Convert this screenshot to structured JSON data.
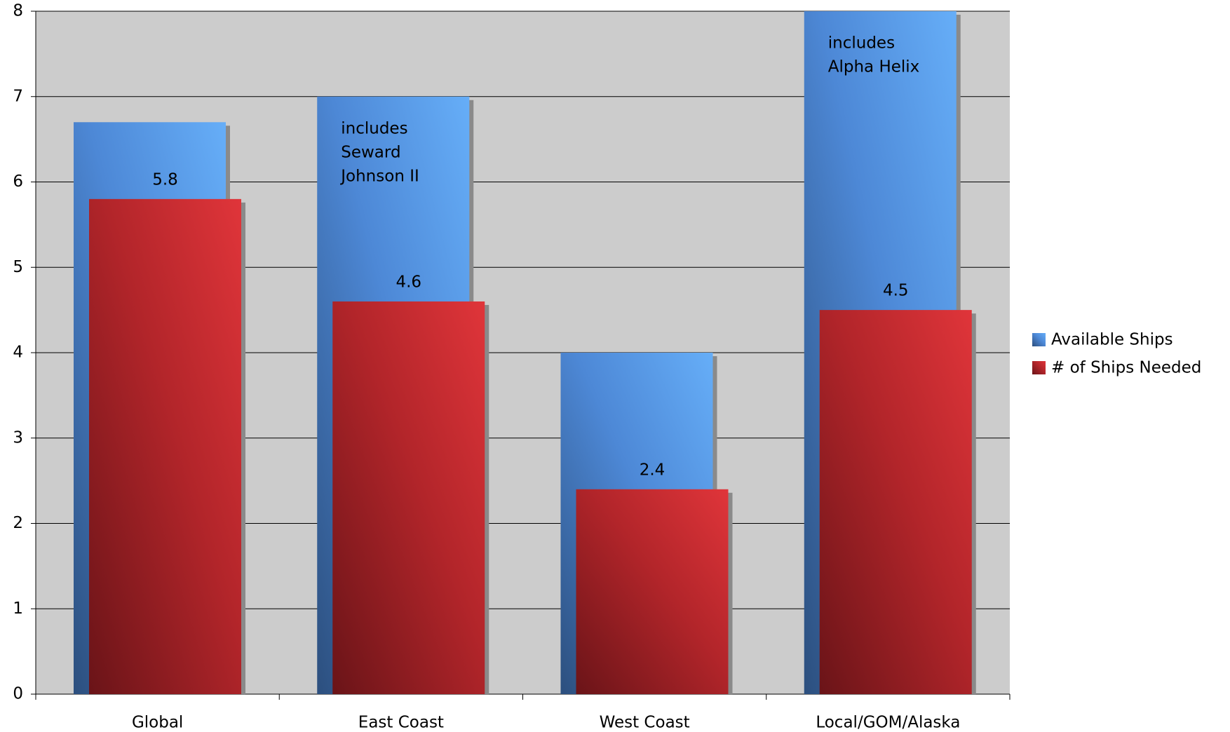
{
  "chart_data": {
    "type": "bar",
    "categories": [
      "Global",
      "East Coast",
      "West Coast",
      "Local/GOM/Alaska"
    ],
    "series": [
      {
        "name": "Available Ships",
        "color": "#5b9cf0",
        "values": [
          6.7,
          7,
          4,
          8
        ],
        "annotations": [
          null,
          [
            "includes",
            "Seward",
            "Johnson II"
          ],
          null,
          [
            "includes",
            "Alpha Helix"
          ]
        ]
      },
      {
        "name": "# of Ships Needed",
        "color": "#d42b30",
        "values": [
          5.8,
          4.6,
          2.4,
          4.5
        ]
      }
    ],
    "ylim": [
      0,
      8
    ],
    "yticks": [
      0,
      1,
      2,
      3,
      4,
      5,
      6,
      7,
      8
    ],
    "grid": true,
    "legend": "right"
  }
}
